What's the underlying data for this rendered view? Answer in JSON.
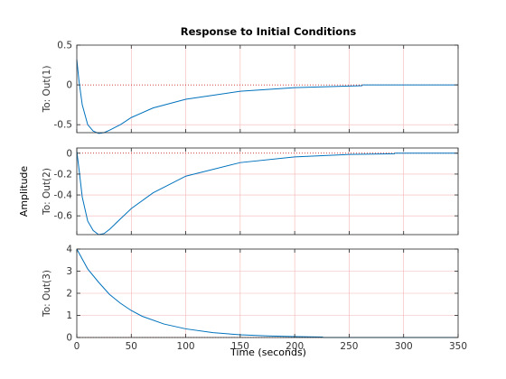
{
  "chart_data": {
    "type": "line",
    "title": "Response to Initial Conditions",
    "xlabel": "Time (seconds)",
    "ylabel": "Amplitude",
    "xlim": [
      0,
      350
    ],
    "xticks": [
      "0",
      "50",
      "100",
      "150",
      "200",
      "250",
      "300",
      "350"
    ],
    "grid": true,
    "line_color": "#0072BD",
    "grid_color": "#F4B6B6",
    "zero_line_color": "#C00000",
    "subplots": [
      {
        "ylabel": "To: Out(1)",
        "ylim": [
          -0.6,
          0.5
        ],
        "yticks": [
          "-0.5",
          "0",
          "0.5"
        ],
        "ytick_values": [
          -0.5,
          0,
          0.5
        ],
        "line_end_x": 262,
        "x": [
          0,
          2,
          5,
          10,
          15,
          20,
          25,
          30,
          40,
          50,
          70,
          100,
          150,
          200,
          262
        ],
        "values": [
          0.32,
          0.05,
          -0.25,
          -0.5,
          -0.58,
          -0.61,
          -0.6,
          -0.57,
          -0.5,
          -0.41,
          -0.29,
          -0.18,
          -0.08,
          -0.035,
          -0.01
        ]
      },
      {
        "ylabel": "To: Out(2)",
        "ylim": [
          -0.78,
          0.05
        ],
        "yticks": [
          "0",
          "-0.2",
          "-0.4",
          "-0.6"
        ],
        "ytick_values": [
          0,
          -0.2,
          -0.4,
          -0.6
        ],
        "line_end_x": 292,
        "x": [
          0,
          2,
          5,
          10,
          15,
          20,
          25,
          30,
          40,
          50,
          70,
          100,
          150,
          200,
          250,
          292
        ],
        "values": [
          0.02,
          -0.15,
          -0.42,
          -0.65,
          -0.74,
          -0.78,
          -0.77,
          -0.73,
          -0.63,
          -0.53,
          -0.38,
          -0.22,
          -0.09,
          -0.035,
          -0.012,
          -0.005
        ]
      },
      {
        "ylabel": "To: Out(3)",
        "ylim": [
          0,
          4
        ],
        "yticks": [
          "0",
          "1",
          "2",
          "3",
          "4"
        ],
        "ytick_values": [
          0,
          1,
          2,
          3,
          4
        ],
        "line_end_x": 226,
        "x": [
          0,
          10,
          20,
          30,
          40,
          50,
          60,
          80,
          100,
          125,
          150,
          175,
          200,
          226
        ],
        "values": [
          4.0,
          3.1,
          2.5,
          1.95,
          1.55,
          1.22,
          0.96,
          0.61,
          0.39,
          0.22,
          0.12,
          0.07,
          0.04,
          0.02
        ]
      }
    ]
  }
}
